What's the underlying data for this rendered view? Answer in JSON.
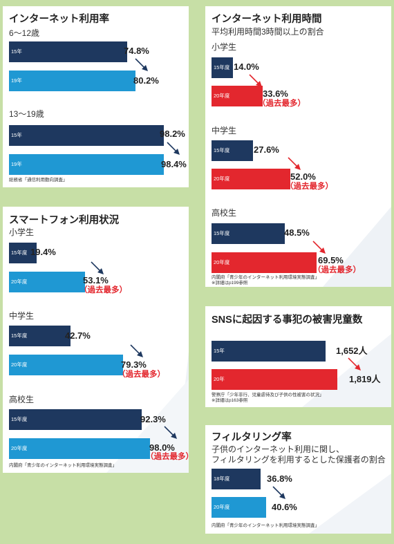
{
  "colors": {
    "dark": "#1e385f",
    "blue": "#1f98d3",
    "red": "#e3272e",
    "background": "#c7dfa6"
  },
  "chart_data": [
    {
      "type": "bar",
      "title": "インターネット利用率",
      "groups": [
        {
          "label": "6〜12歳",
          "bars": [
            {
              "year": "15年",
              "value": 74.8,
              "label": "74.8%",
              "color": "dark"
            },
            {
              "year": "19年",
              "value": 80.2,
              "label": "80.2%",
              "color": "blue"
            }
          ]
        },
        {
          "label": "13〜19歳",
          "bars": [
            {
              "year": "15年",
              "value": 98.2,
              "label": "98.2%",
              "color": "dark"
            },
            {
              "year": "19年",
              "value": 98.4,
              "label": "98.4%",
              "color": "blue"
            }
          ]
        }
      ],
      "source": "総務省「通信利用動向調査」"
    },
    {
      "type": "bar",
      "title": "スマートフォン利用状況",
      "groups": [
        {
          "label": "小学生",
          "bars": [
            {
              "year": "15年度",
              "value": 19.4,
              "label": "19.4%",
              "color": "dark"
            },
            {
              "year": "20年度",
              "value": 53.1,
              "label": "53.1%",
              "color": "blue",
              "note": "（過去最多）"
            }
          ]
        },
        {
          "label": "中学生",
          "bars": [
            {
              "year": "15年度",
              "value": 42.7,
              "label": "42.7%",
              "color": "dark"
            },
            {
              "year": "20年度",
              "value": 79.3,
              "label": "79.3%",
              "color": "blue",
              "note": "（過去最多）"
            }
          ]
        },
        {
          "label": "高校生",
          "bars": [
            {
              "year": "15年度",
              "value": 92.3,
              "label": "92.3%",
              "color": "dark"
            },
            {
              "year": "20年度",
              "value": 98.0,
              "label": "98.0%",
              "color": "blue",
              "note": "（過去最多）"
            }
          ]
        }
      ],
      "source": "内閣府「青少年のインターネット利用環境実態調査」"
    },
    {
      "type": "bar",
      "title": "インターネット利用時間",
      "subtitle": "平均利用時間3時間以上の割合",
      "groups": [
        {
          "label": "小学生",
          "bars": [
            {
              "year": "15年度",
              "value": 14.0,
              "label": "14.0%",
              "color": "dark"
            },
            {
              "year": "20年度",
              "value": 33.6,
              "label": "33.6%",
              "color": "red",
              "note": "（過去最多）"
            }
          ]
        },
        {
          "label": "中学生",
          "bars": [
            {
              "year": "15年度",
              "value": 27.6,
              "label": "27.6%",
              "color": "dark"
            },
            {
              "year": "20年度",
              "value": 52.0,
              "label": "52.0%",
              "color": "red",
              "note": "（過去最多）"
            }
          ]
        },
        {
          "label": "高校生",
          "bars": [
            {
              "year": "15年度",
              "value": 48.5,
              "label": "48.5%",
              "color": "dark"
            },
            {
              "year": "20年度",
              "value": 69.5,
              "label": "69.5%",
              "color": "red",
              "note": "（過去最多）"
            }
          ]
        }
      ],
      "source": "内閣府「青少年のインターネット利用環境実態調査」",
      "source_note": "※詳細はp199参照"
    },
    {
      "type": "bar",
      "title": "SNSに起因する事犯の被害児童数",
      "groups": [
        {
          "label": "",
          "bars": [
            {
              "year": "15年",
              "value": 1652,
              "label": "1,652人",
              "color": "dark"
            },
            {
              "year": "20年",
              "value": 1819,
              "label": "1,819人",
              "color": "red"
            }
          ]
        }
      ],
      "source": "警察庁「少年非行、児童虐待及び子供の性被害の状況」",
      "source_note": "※詳細はp163参照"
    },
    {
      "type": "bar",
      "title": "フィルタリング率",
      "subtitle": "子供のインターネット利用に関し、",
      "subtitle2": "フィルタリングを利用するとした保護者の割合",
      "groups": [
        {
          "label": "",
          "bars": [
            {
              "year": "18年度",
              "value": 36.8,
              "label": "36.8%",
              "color": "dark"
            },
            {
              "year": "20年度",
              "value": 40.6,
              "label": "40.6%",
              "color": "blue"
            }
          ]
        }
      ],
      "source": "内閣府「青少年のインターネット利用環境実態調査」"
    }
  ]
}
